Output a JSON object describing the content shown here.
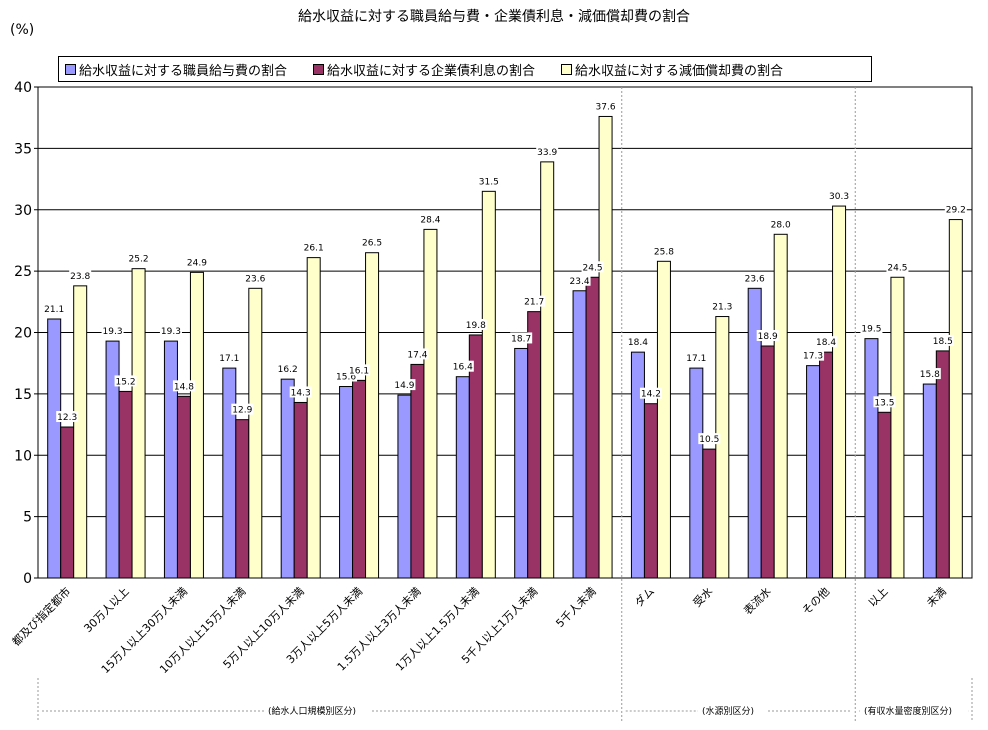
{
  "chart_data": {
    "type": "bar",
    "title": "給水収益に対する職員給与費・企業債利息・減価償却費の割合",
    "ylabel": "(%)",
    "ylim": [
      0,
      40
    ],
    "yticks": [
      0,
      5,
      10,
      15,
      20,
      25,
      30,
      35,
      40
    ],
    "grid": true,
    "legend_position": "top",
    "categories": [
      "都及び指定都市",
      "30万人以上",
      "15万人以上30万人未満",
      "10万人以上15万人未満",
      "5万人以上10万人未満",
      "3万人以上5万人未満",
      "1.5万人以上3万人未満",
      "1万人以上1.5万人未満",
      "5千人以上1万人未満",
      "5千人未満",
      "ダム",
      "受水",
      "表流水",
      "その他",
      "以上",
      "未満"
    ],
    "series": [
      {
        "name": "給水収益に対する職員給与費の割合",
        "color": "#9999ff",
        "values": [
          21.1,
          19.3,
          19.3,
          17.1,
          16.2,
          15.6,
          14.9,
          16.4,
          18.7,
          23.4,
          18.4,
          17.1,
          23.6,
          17.3,
          19.5,
          15.8
        ]
      },
      {
        "name": "給水収益に対する企業債利息の割合",
        "color": "#993366",
        "values": [
          12.3,
          15.2,
          14.8,
          12.9,
          14.3,
          16.1,
          17.4,
          19.8,
          21.7,
          24.5,
          14.2,
          10.5,
          18.9,
          18.4,
          13.5,
          18.5
        ]
      },
      {
        "name": "給水収益に対する減価償却費の割合",
        "color": "#ffffcc",
        "values": [
          23.8,
          25.2,
          24.9,
          23.6,
          26.1,
          26.5,
          28.4,
          31.5,
          33.9,
          37.6,
          25.8,
          21.3,
          28.0,
          30.3,
          24.5,
          29.2
        ]
      }
    ],
    "groups": [
      {
        "label": "(給水人口規模別区分)",
        "start": 0,
        "end": 9
      },
      {
        "label": "(水源別区分)",
        "start": 10,
        "end": 13
      },
      {
        "label": "(有収水量密度別区分)",
        "start": 14,
        "end": 15
      }
    ]
  }
}
